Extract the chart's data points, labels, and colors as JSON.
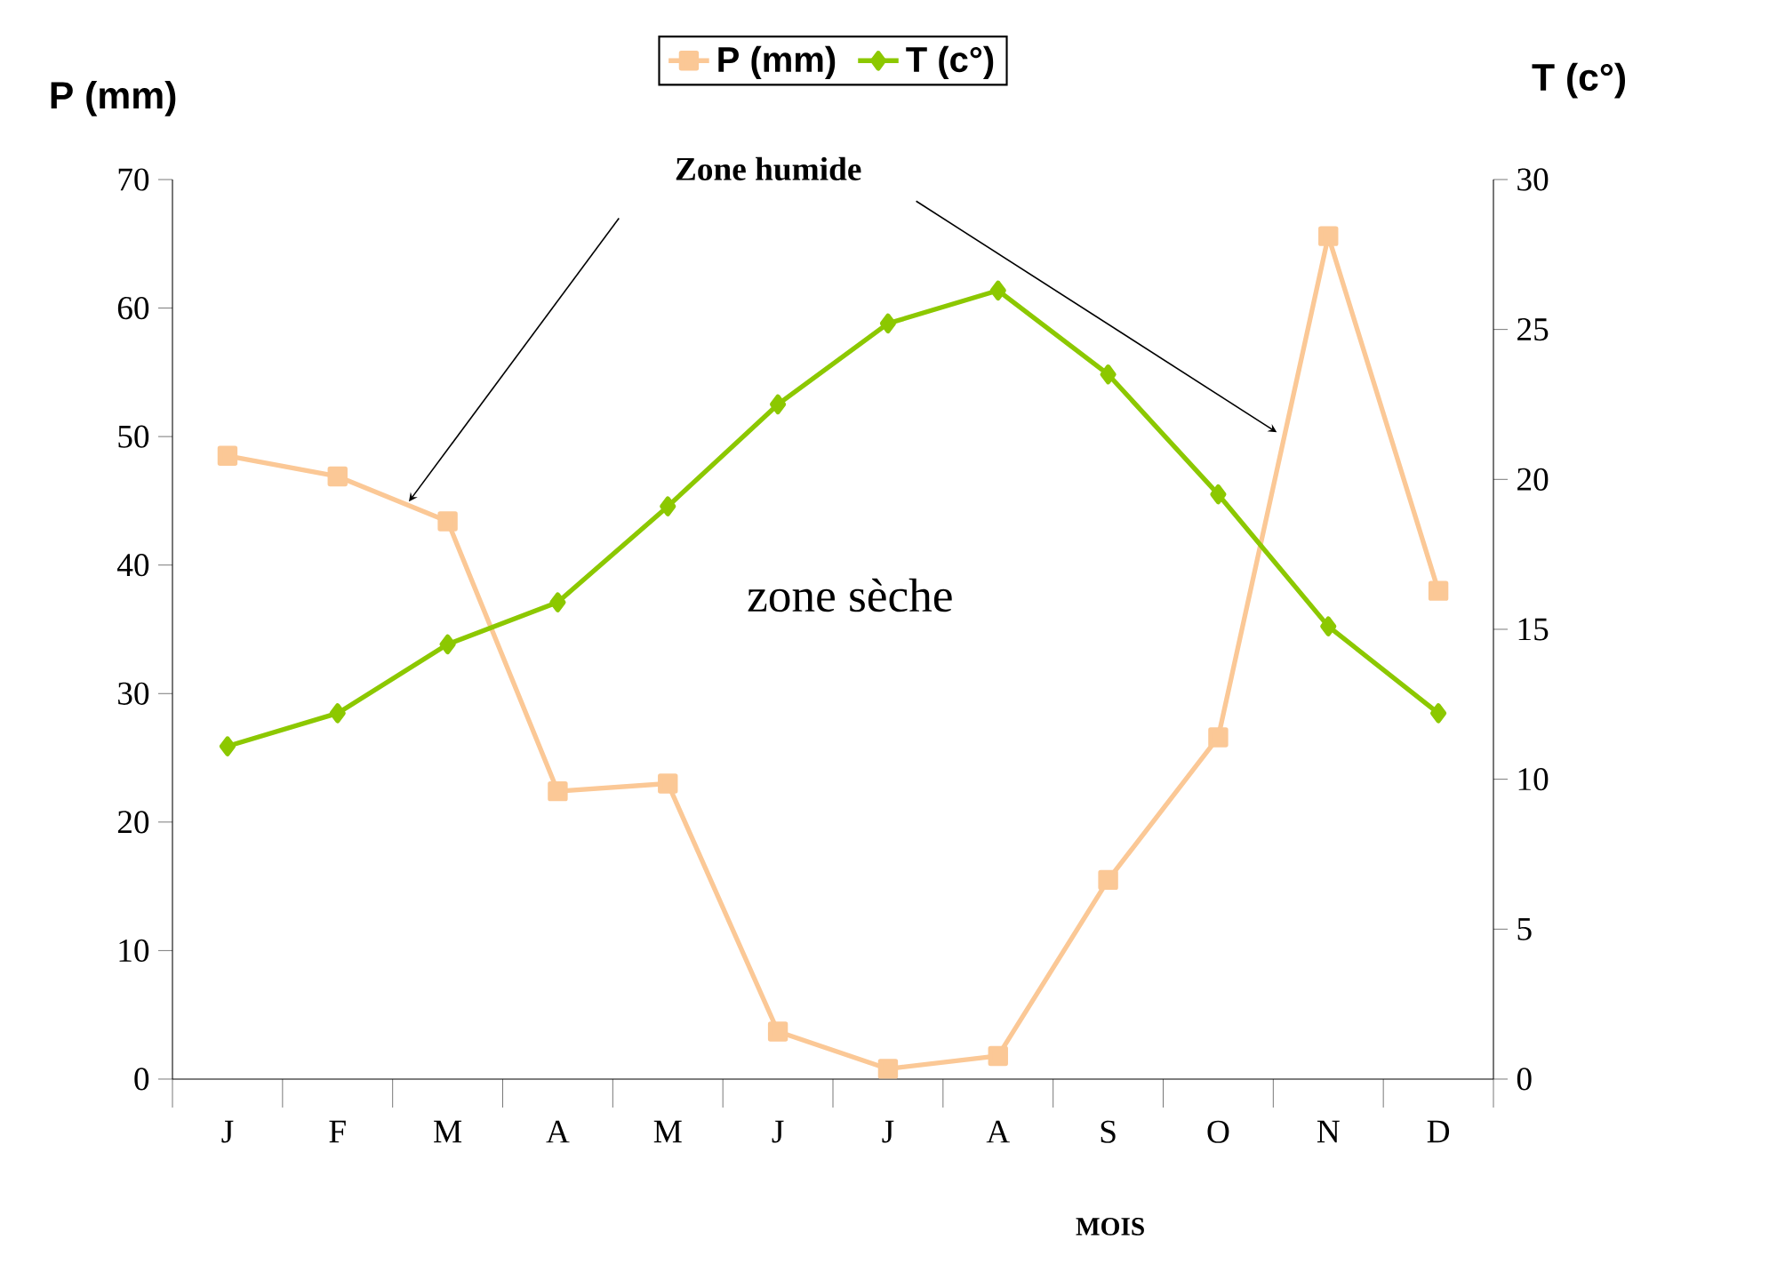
{
  "chart_data": {
    "type": "line",
    "categories": [
      "J",
      "F",
      "M",
      "A",
      "M",
      "J",
      "J",
      "A",
      "S",
      "O",
      "N",
      "D"
    ],
    "series": [
      {
        "name": "P (mm)",
        "color": "#fbc896",
        "marker": "square",
        "values": [
          48.5,
          46.9,
          43.4,
          22.4,
          23.0,
          3.7,
          0.8,
          1.8,
          15.5,
          26.6,
          65.6,
          38.0
        ]
      },
      {
        "name": "T (c°)",
        "color": "#8cc800",
        "marker": "diamond",
        "axis": "y2",
        "values": [
          11.1,
          12.2,
          14.5,
          15.9,
          19.1,
          22.5,
          25.2,
          26.3,
          23.5,
          19.5,
          15.1,
          12.2
        ]
      }
    ],
    "ylabel": "P (mm)",
    "y2label": "T (c°)",
    "xlabel": "MOIS",
    "ylim": [
      0,
      70
    ],
    "yticks": [
      0,
      10,
      20,
      30,
      40,
      50,
      60,
      70
    ],
    "y2lim": [
      0,
      30
    ],
    "y2ticks": [
      0,
      5,
      10,
      15,
      20,
      25,
      30
    ],
    "annotations": [
      "Zone humide",
      "zone sèche"
    ],
    "legend": "top",
    "grid": false,
    "line_style": "solid"
  }
}
